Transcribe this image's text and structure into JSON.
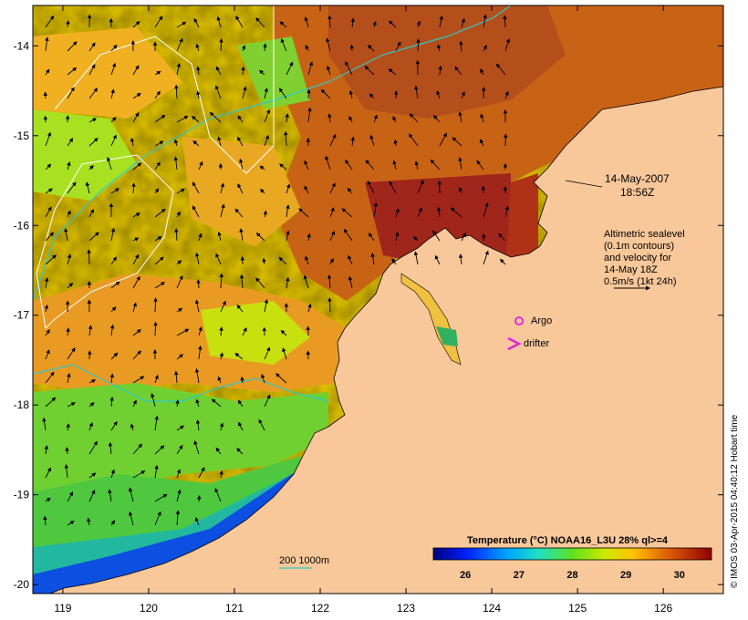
{
  "map": {
    "x_ticks": [
      "119",
      "120",
      "121",
      "122",
      "123",
      "124",
      "125",
      "126"
    ],
    "y_ticks": [
      "-14",
      "-15",
      "-16",
      "-17",
      "-18",
      "-19",
      "-20"
    ],
    "x_range": [
      118.65,
      126.7
    ],
    "y_range": [
      -20.1,
      -13.55
    ],
    "date_line1": "14-May-2007",
    "date_line2": "18:56Z",
    "altimetry_lines": [
      "Altimetric sealevel",
      "(0.1m contours)",
      "and velocity for",
      "14-May 18Z",
      "0.5m/s (1kt 24h)"
    ],
    "argo_label": "Argo",
    "drifter_label": "drifter",
    "isobath_label": "200  1000m",
    "colors": {
      "land": "#f9c89a",
      "marker": "#e020e0",
      "isobath": "#30c8c8",
      "contour": "#ffffff"
    }
  },
  "colorbar": {
    "title": "Temperature (°C) NOAA16_L3U 28% ql>=4",
    "ticks": [
      "26",
      "27",
      "28",
      "29",
      "30"
    ],
    "range": [
      25.4,
      30.6
    ]
  },
  "credit": "© IMOS 03-Apr-2015 04:40:12 Hobart time"
}
